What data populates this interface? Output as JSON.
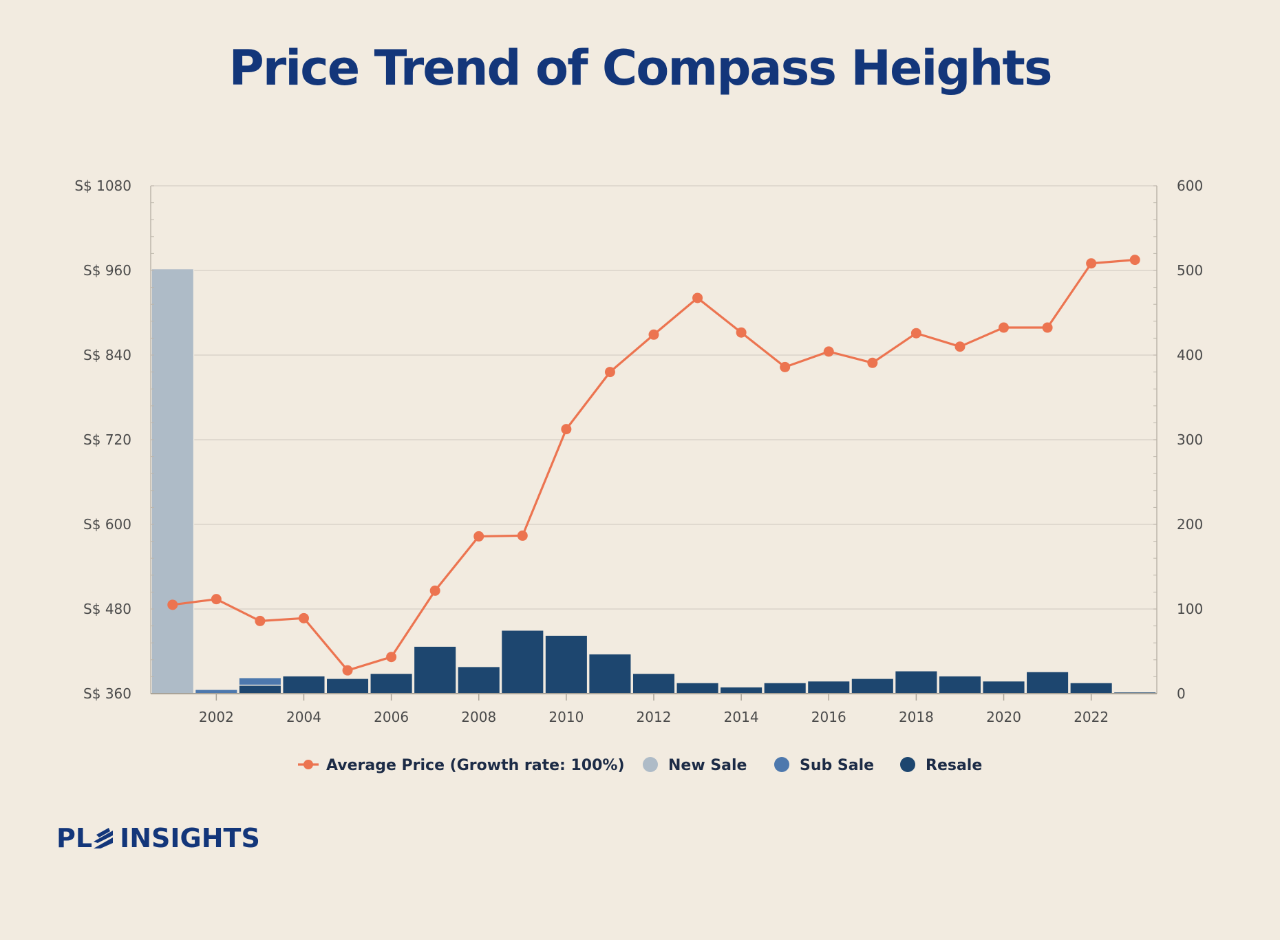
{
  "title": "Price Trend of Compass Heights",
  "logo": {
    "part1": "PL",
    "part2": "INSIGHTS"
  },
  "colors": {
    "price_line": "#ec7450",
    "new_sale": "#aebbc7",
    "sub_sale": "#4d78ad",
    "resale": "#1d466f",
    "grid": "#d9d3c9",
    "title": "#13367a"
  },
  "chart_data": {
    "type": "bar+line",
    "title": "Price Trend of Compass Heights",
    "x_ticks": [
      "2002",
      "2004",
      "2006",
      "2008",
      "2010",
      "2012",
      "2014",
      "2016",
      "2018",
      "2020",
      "2022"
    ],
    "years": [
      2001,
      2002,
      2003,
      2004,
      2005,
      2006,
      2007,
      2008,
      2009,
      2010,
      2011,
      2012,
      2013,
      2014,
      2015,
      2016,
      2017,
      2018,
      2019,
      2020,
      2021,
      2022,
      2023
    ],
    "y_left": {
      "ticks": [
        "S$ 360",
        "S$ 480",
        "S$ 600",
        "S$ 720",
        "S$ 840",
        "S$ 960",
        "S$ 1080"
      ],
      "range": [
        360,
        1080
      ]
    },
    "y_right": {
      "ticks": [
        "0",
        "100",
        "200",
        "300",
        "400",
        "500",
        "600"
      ],
      "range": [
        0,
        600
      ]
    },
    "legend": [
      {
        "name": "Average Price (Growth rate: 100%)",
        "kind": "line"
      },
      {
        "name": "New Sale",
        "kind": "dot"
      },
      {
        "name": "Sub Sale",
        "kind": "dot"
      },
      {
        "name": "Resale",
        "kind": "dot"
      }
    ],
    "series": [
      {
        "name": "Average Price (Growth rate: 100%)",
        "axis": "left",
        "type": "line",
        "values": [
          486,
          494,
          463,
          467,
          393,
          412,
          506,
          583,
          584,
          735,
          816,
          869,
          921,
          872,
          823,
          845,
          829,
          871,
          852,
          879,
          879,
          970,
          975
        ]
      },
      {
        "name": "New Sale",
        "axis": "right",
        "type": "bar",
        "values": [
          502,
          0,
          1,
          0,
          0,
          0,
          0,
          0,
          0,
          0,
          0,
          0,
          0,
          0,
          0,
          0,
          0,
          0,
          0,
          0,
          0,
          0,
          0
        ]
      },
      {
        "name": "Sub Sale",
        "axis": "right",
        "type": "bar",
        "values": [
          0,
          5,
          9,
          0,
          0,
          0,
          0,
          0,
          0,
          0,
          0,
          0,
          0,
          0,
          0,
          0,
          0,
          0,
          0,
          0,
          0,
          0,
          0
        ]
      },
      {
        "name": "Resale",
        "axis": "right",
        "type": "bar",
        "values": [
          0,
          0,
          10,
          21,
          18,
          24,
          56,
          32,
          75,
          69,
          47,
          24,
          13,
          8,
          13,
          15,
          18,
          27,
          21,
          15,
          26,
          13,
          2
        ]
      }
    ]
  }
}
